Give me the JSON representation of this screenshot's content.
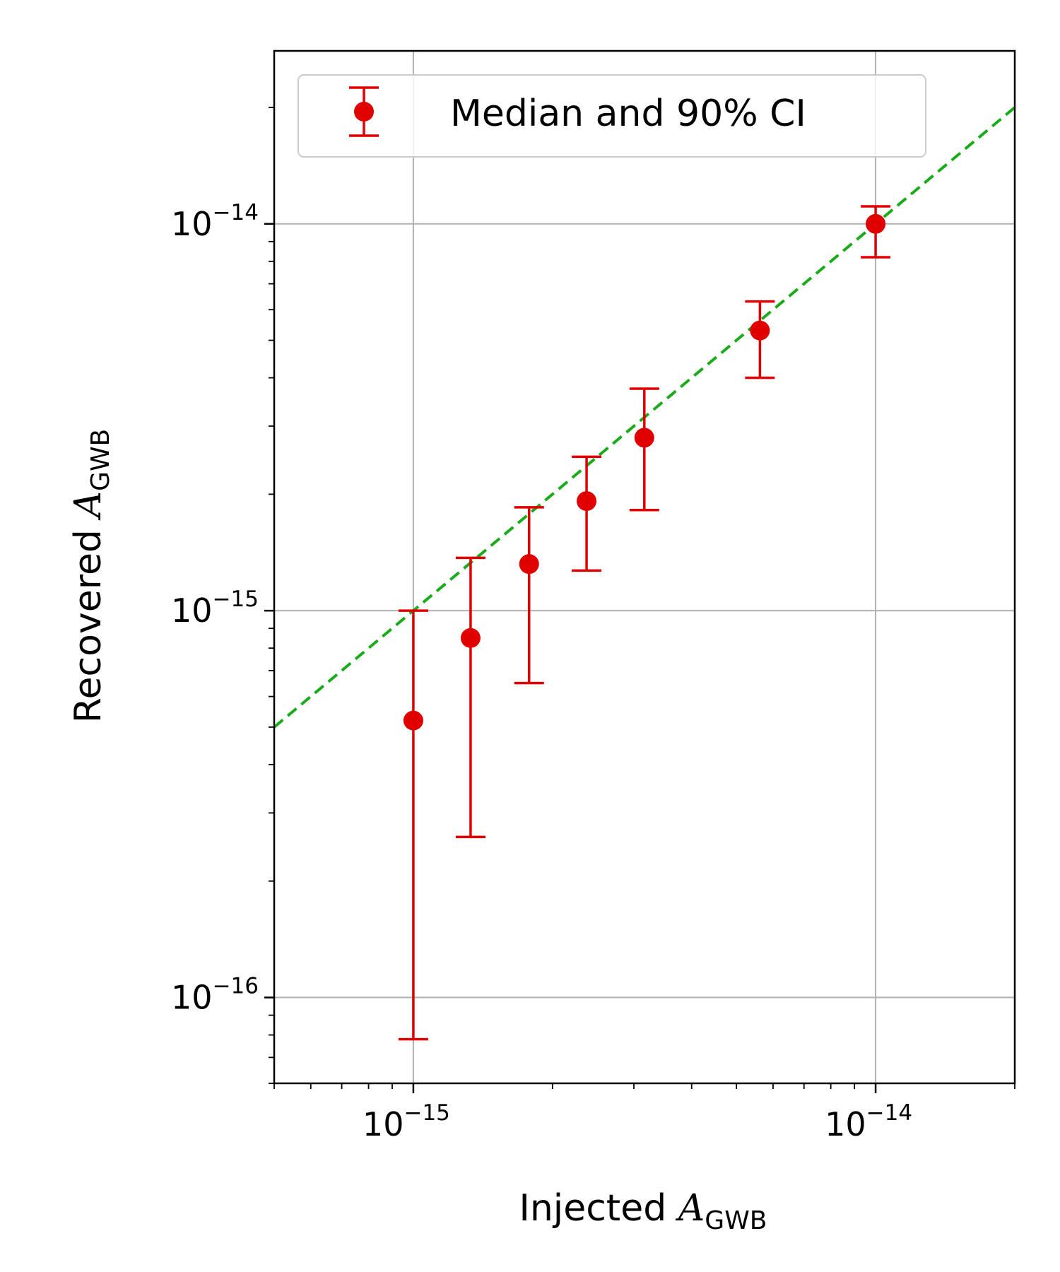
{
  "chart_data": {
    "type": "scatter",
    "xlabel": "Injected A_GWB",
    "ylabel": "Recovered A_GWB",
    "axis_label_parts": {
      "x_prefix": "Injected ",
      "y_prefix": "Recovered ",
      "symbol": "A",
      "subscript": "GWB"
    },
    "xscale": "log",
    "yscale": "log",
    "xlim": [
      5e-16,
      2e-14
    ],
    "ylim": [
      6e-17,
      2.8e-14
    ],
    "grid": true,
    "legend": {
      "position": "top-left",
      "entries": [
        "Median and 90% CI"
      ]
    },
    "x_ticks": [
      {
        "value": 1e-15,
        "base": "10",
        "exp": "−15"
      },
      {
        "value": 1e-14,
        "base": "10",
        "exp": "−14"
      }
    ],
    "y_ticks": [
      {
        "value": 1e-16,
        "base": "10",
        "exp": "−16"
      },
      {
        "value": 1e-15,
        "base": "10",
        "exp": "−15"
      },
      {
        "value": 1e-14,
        "base": "10",
        "exp": "−14"
      }
    ],
    "series": [
      {
        "name": "Median and 90% CI",
        "color": "#e00000",
        "points": [
          {
            "x": 1e-15,
            "y": 5.2e-16,
            "ylow": 7.8e-17,
            "yhigh": 1e-15
          },
          {
            "x": 1.33e-15,
            "y": 8.5e-16,
            "ylow": 2.6e-16,
            "yhigh": 1.37e-15
          },
          {
            "x": 1.78e-15,
            "y": 1.32e-15,
            "ylow": 6.5e-16,
            "yhigh": 1.85e-15
          },
          {
            "x": 2.37e-15,
            "y": 1.92e-15,
            "ylow": 1.27e-15,
            "yhigh": 2.5e-15
          },
          {
            "x": 3.16e-15,
            "y": 2.8e-15,
            "ylow": 1.82e-15,
            "yhigh": 3.75e-15
          },
          {
            "x": 5.62e-15,
            "y": 5.3e-15,
            "ylow": 4e-15,
            "yhigh": 6.3e-15
          },
          {
            "x": 1e-14,
            "y": 1e-14,
            "ylow": 8.2e-15,
            "yhigh": 1.11e-14
          }
        ]
      }
    ],
    "reference_line": {
      "style": "dashed",
      "color": "#1aab1a",
      "slope": 1
    }
  },
  "colors": {
    "points": "#e00000",
    "reference": "#1aab1a",
    "grid": "#b0b0b0"
  }
}
